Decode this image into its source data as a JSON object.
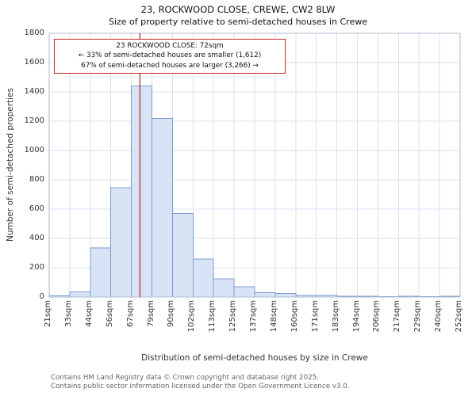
{
  "title": "23, ROCKWOOD CLOSE, CREWE, CW2 8LW",
  "subtitle": "Size of property relative to semi-detached houses in Crewe",
  "annotation": {
    "line1": "23 ROCKWOOD CLOSE: 72sqm",
    "line2": "← 33% of semi-detached houses are smaller (1,612)",
    "line3": "67% of semi-detached houses are larger (3,266) →"
  },
  "footer": {
    "line1": "Contains HM Land Registry data © Crown copyright and database right 2025.",
    "line2": "Contains public sector information licensed under the Open Government Licence v3.0."
  },
  "chart_data": {
    "type": "bar",
    "title": "23, ROCKWOOD CLOSE, CREWE, CW2 8LW",
    "subtitle": "Size of property relative to semi-detached houses in Crewe",
    "xlabel": "Distribution of semi-detached houses by size in Crewe",
    "ylabel": "Number of semi-detached properties",
    "bin_edges": [
      21,
      33,
      44,
      56,
      67,
      79,
      90,
      102,
      113,
      125,
      137,
      148,
      160,
      171,
      183,
      194,
      206,
      217,
      229,
      240,
      252
    ],
    "tick_labels": [
      "21sqm",
      "33sqm",
      "44sqm",
      "56sqm",
      "67sqm",
      "79sqm",
      "90sqm",
      "102sqm",
      "113sqm",
      "125sqm",
      "137sqm",
      "148sqm",
      "160sqm",
      "171sqm",
      "183sqm",
      "194sqm",
      "206sqm",
      "217sqm",
      "229sqm",
      "240sqm",
      "252sqm"
    ],
    "values": [
      8,
      35,
      335,
      745,
      1440,
      1220,
      570,
      260,
      125,
      70,
      30,
      25,
      12,
      10,
      6,
      5,
      3,
      5,
      2,
      5
    ],
    "ylim": [
      0,
      1800
    ],
    "yticks": [
      0,
      200,
      400,
      600,
      800,
      1000,
      1200,
      1400,
      1600,
      1800
    ],
    "marker": {
      "value": 72,
      "color": "#aa2222"
    },
    "grid": true,
    "legend": "none",
    "bar_fill": "#d8e4f6",
    "bar_stroke": "#7b9cd0",
    "grid_color": "#dbe1f0",
    "spine_color": "#b3bbd0"
  }
}
